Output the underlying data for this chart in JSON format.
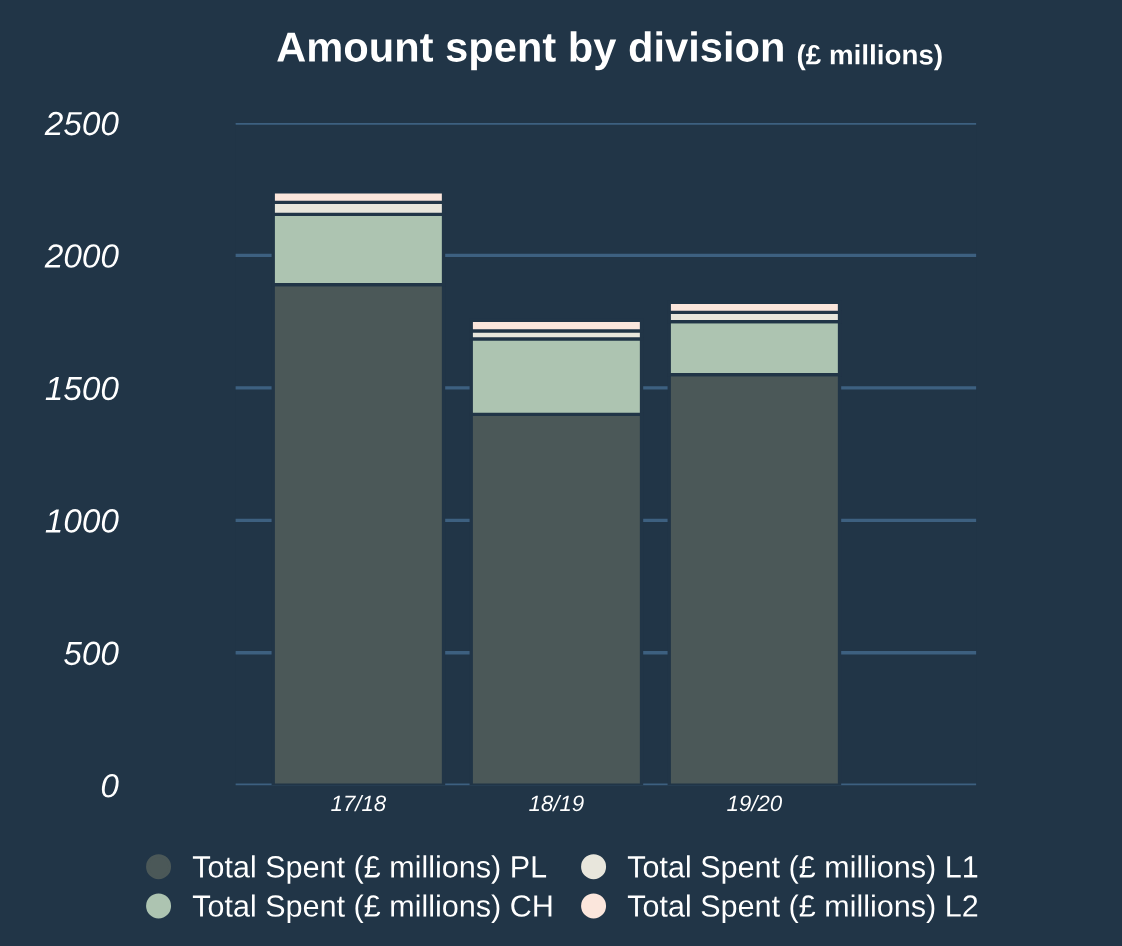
{
  "chart_data": {
    "type": "bar",
    "title": "Amount spent by division",
    "subtitle": "(£ millions)",
    "categories": [
      "17/18",
      "18/19",
      "19/20"
    ],
    "stacked": true,
    "series": [
      {
        "name": "Total Spent (£ millions) PL",
        "color": "#4b5858",
        "values": [
          1890,
          1400,
          1550
        ]
      },
      {
        "name": "Total Spent (£ millions) CH",
        "color": "#adc4b1",
        "values": [
          265,
          285,
          200
        ]
      },
      {
        "name": "Total Spent (£ millions) L1",
        "color": "#e8e6dc",
        "values": [
          45,
          30,
          35
        ]
      },
      {
        "name": "Total Spent (£ millions) L2",
        "color": "#fbe6dc",
        "values": [
          40,
          40,
          38
        ]
      }
    ],
    "ylim": [
      0,
      2500
    ],
    "yticks": [
      0,
      500,
      1000,
      1500,
      2000,
      2500
    ],
    "grid": "y",
    "legend": "bottom"
  }
}
